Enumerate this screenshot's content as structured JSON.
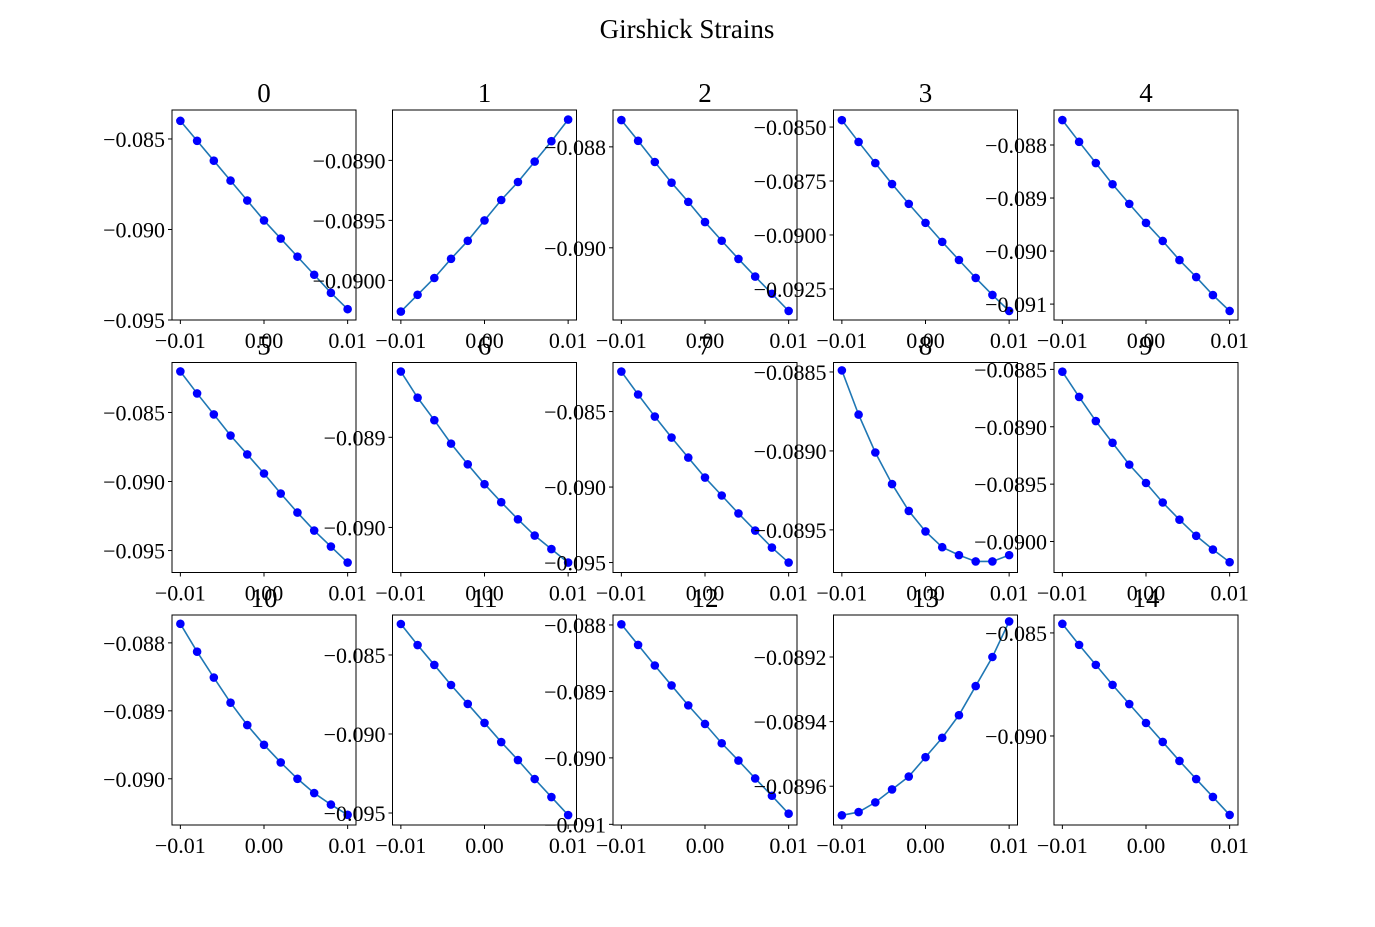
{
  "title": "Girshick Strains",
  "chart_data": [
    {
      "type": "line",
      "title": "0",
      "color": "#1f77b4",
      "marker_color": "#0000ff",
      "x": [
        -0.01,
        -0.008,
        -0.006,
        -0.004,
        -0.002,
        0,
        0.002,
        0.004,
        0.006,
        0.008,
        0.01
      ],
      "values": [
        -0.084,
        -0.0851,
        -0.0862,
        -0.0873,
        -0.0884,
        -0.0895,
        -0.0905,
        -0.0915,
        -0.0925,
        -0.0935,
        -0.0944
      ],
      "xlim": [
        -0.011,
        0.011
      ],
      "ylim": [
        -0.095,
        -0.0834
      ],
      "xticks": [
        {
          "value": -0.01,
          "label": "−0.01"
        },
        {
          "value": 0,
          "label": "0.00"
        },
        {
          "value": 0.01,
          "label": "0.01"
        }
      ],
      "yticks": [
        {
          "value": -0.085,
          "label": "−0.085"
        },
        {
          "value": -0.09,
          "label": "−0.090"
        },
        {
          "value": -0.095,
          "label": "−0.095"
        }
      ]
    },
    {
      "type": "line",
      "title": "1",
      "color": "#1f77b4",
      "marker_color": "#0000ff",
      "x": [
        -0.01,
        -0.008,
        -0.006,
        -0.004,
        -0.002,
        0,
        0.002,
        0.004,
        0.006,
        0.008,
        0.01
      ],
      "values": [
        -0.09026,
        -0.09012,
        -0.08998,
        -0.08982,
        -0.08967,
        -0.0895,
        -0.08933,
        -0.08918,
        -0.08901,
        -0.08884,
        -0.08866
      ],
      "xlim": [
        -0.011,
        0.011
      ],
      "ylim": [
        -0.09033,
        -0.08858
      ],
      "xticks": [
        {
          "value": -0.01,
          "label": "−0.01"
        },
        {
          "value": 0,
          "label": "0.00"
        },
        {
          "value": 0.01,
          "label": "0.01"
        }
      ],
      "yticks": [
        {
          "value": -0.089,
          "label": "−0.0890"
        },
        {
          "value": -0.0895,
          "label": "−0.0895"
        },
        {
          "value": -0.09,
          "label": "−0.0900"
        }
      ]
    },
    {
      "type": "line",
      "title": "2",
      "color": "#1f77b4",
      "marker_color": "#0000ff",
      "x": [
        -0.01,
        -0.008,
        -0.006,
        -0.004,
        -0.002,
        0,
        0.002,
        0.004,
        0.006,
        0.008,
        0.01
      ],
      "values": [
        -0.08747,
        -0.08788,
        -0.0883,
        -0.08871,
        -0.08909,
        -0.08949,
        -0.08986,
        -0.09022,
        -0.09057,
        -0.09091,
        -0.09125
      ],
      "xlim": [
        -0.011,
        0.011
      ],
      "ylim": [
        -0.09143,
        -0.08727
      ],
      "xticks": [
        {
          "value": -0.01,
          "label": "−0.01"
        },
        {
          "value": 0,
          "label": "0.00"
        },
        {
          "value": 0.01,
          "label": "0.01"
        }
      ],
      "yticks": [
        {
          "value": -0.088,
          "label": "−0.088"
        },
        {
          "value": -0.09,
          "label": "−0.090"
        }
      ]
    },
    {
      "type": "line",
      "title": "3",
      "color": "#1f77b4",
      "marker_color": "#0000ff",
      "x": [
        -0.01,
        -0.008,
        -0.006,
        -0.004,
        -0.002,
        0,
        0.002,
        0.004,
        0.006,
        0.008,
        0.01
      ],
      "values": [
        -0.08468,
        -0.08569,
        -0.08667,
        -0.08764,
        -0.08856,
        -0.08944,
        -0.09032,
        -0.09116,
        -0.09199,
        -0.09278,
        -0.09352
      ],
      "xlim": [
        -0.011,
        0.011
      ],
      "ylim": [
        -0.09394,
        -0.08421
      ],
      "xticks": [
        {
          "value": -0.01,
          "label": "−0.01"
        },
        {
          "value": 0,
          "label": "0.00"
        },
        {
          "value": 0.01,
          "label": "0.01"
        }
      ],
      "yticks": [
        {
          "value": -0.085,
          "label": "−0.0850"
        },
        {
          "value": -0.0875,
          "label": "−0.0875"
        },
        {
          "value": -0.09,
          "label": "−0.0900"
        },
        {
          "value": -0.0925,
          "label": "−0.0925"
        }
      ]
    },
    {
      "type": "line",
      "title": "4",
      "color": "#1f77b4",
      "marker_color": "#0000ff",
      "x": [
        -0.01,
        -0.008,
        -0.006,
        -0.004,
        -0.002,
        0,
        0.002,
        0.004,
        0.006,
        0.008,
        0.01
      ],
      "values": [
        -0.08753,
        -0.08794,
        -0.08834,
        -0.08874,
        -0.08911,
        -0.08947,
        -0.08981,
        -0.09017,
        -0.09049,
        -0.09083,
        -0.09113
      ],
      "xlim": [
        -0.011,
        0.011
      ],
      "ylim": [
        -0.0913,
        -0.08734
      ],
      "xticks": [
        {
          "value": -0.01,
          "label": "−0.01"
        },
        {
          "value": 0,
          "label": "0.00"
        },
        {
          "value": 0.01,
          "label": "0.01"
        }
      ],
      "yticks": [
        {
          "value": -0.088,
          "label": "−0.088"
        },
        {
          "value": -0.089,
          "label": "−0.089"
        },
        {
          "value": -0.09,
          "label": "−0.090"
        },
        {
          "value": -0.091,
          "label": "−0.091"
        }
      ]
    },
    {
      "type": "line",
      "title": "5",
      "color": "#1f77b4",
      "marker_color": "#0000ff",
      "x": [
        -0.01,
        -0.008,
        -0.006,
        -0.004,
        -0.002,
        0,
        0.002,
        0.004,
        0.006,
        0.008,
        0.01
      ],
      "values": [
        -0.08203,
        -0.08362,
        -0.08514,
        -0.08667,
        -0.08804,
        -0.08942,
        -0.09087,
        -0.09225,
        -0.09355,
        -0.09471,
        -0.09587
      ],
      "xlim": [
        -0.011,
        0.011
      ],
      "ylim": [
        -0.09659,
        -0.08138
      ],
      "xticks": [
        {
          "value": -0.01,
          "label": "−0.01"
        },
        {
          "value": 0,
          "label": "0.00"
        },
        {
          "value": 0.01,
          "label": "0.01"
        }
      ],
      "yticks": [
        {
          "value": -0.085,
          "label": "−0.085"
        },
        {
          "value": -0.09,
          "label": "−0.090"
        },
        {
          "value": -0.095,
          "label": "−0.095"
        }
      ]
    },
    {
      "type": "line",
      "title": "6",
      "color": "#1f77b4",
      "marker_color": "#0000ff",
      "x": [
        -0.01,
        -0.008,
        -0.006,
        -0.004,
        -0.002,
        0,
        0.002,
        0.004,
        0.006,
        0.008,
        0.01
      ],
      "values": [
        -0.08827,
        -0.08856,
        -0.08881,
        -0.08907,
        -0.0893,
        -0.08952,
        -0.08972,
        -0.08991,
        -0.09009,
        -0.09024,
        -0.09039
      ],
      "xlim": [
        -0.011,
        0.011
      ],
      "ylim": [
        -0.0905,
        -0.08817
      ],
      "xticks": [
        {
          "value": -0.01,
          "label": "−0.01"
        },
        {
          "value": 0,
          "label": "0.00"
        },
        {
          "value": 0.01,
          "label": "0.01"
        }
      ],
      "yticks": [
        {
          "value": -0.089,
          "label": "−0.089"
        },
        {
          "value": -0.09,
          "label": "−0.090"
        }
      ]
    },
    {
      "type": "line",
      "title": "7",
      "color": "#1f77b4",
      "marker_color": "#0000ff",
      "x": [
        -0.01,
        -0.008,
        -0.006,
        -0.004,
        -0.002,
        0,
        0.002,
        0.004,
        0.006,
        0.008,
        0.01
      ],
      "values": [
        -0.08235,
        -0.08387,
        -0.08533,
        -0.08672,
        -0.08805,
        -0.08937,
        -0.09056,
        -0.09175,
        -0.09288,
        -0.09401,
        -0.095
      ],
      "xlim": [
        -0.011,
        0.011
      ],
      "ylim": [
        -0.09566,
        -0.08175
      ],
      "xticks": [
        {
          "value": -0.01,
          "label": "−0.01"
        },
        {
          "value": 0,
          "label": "0.00"
        },
        {
          "value": 0.01,
          "label": "0.01"
        }
      ],
      "yticks": [
        {
          "value": -0.085,
          "label": "−0.085"
        },
        {
          "value": -0.09,
          "label": "−0.090"
        },
        {
          "value": -0.095,
          "label": "−0.095"
        }
      ]
    },
    {
      "type": "line",
      "title": "8",
      "color": "#1f77b4",
      "marker_color": "#0000ff",
      "x": [
        -0.01,
        -0.008,
        -0.006,
        -0.004,
        -0.002,
        0,
        0.002,
        0.004,
        0.006,
        0.008,
        0.01
      ],
      "values": [
        -0.08849,
        -0.08877,
        -0.08901,
        -0.08921,
        -0.08938,
        -0.08951,
        -0.08961,
        -0.08966,
        -0.0897,
        -0.0897,
        -0.08966
      ],
      "xlim": [
        -0.011,
        0.011
      ],
      "ylim": [
        -0.08977,
        -0.08844
      ],
      "xticks": [
        {
          "value": -0.01,
          "label": "−0.01"
        },
        {
          "value": 0,
          "label": "0.00"
        },
        {
          "value": 0.01,
          "label": "0.01"
        }
      ],
      "yticks": [
        {
          "value": -0.0885,
          "label": "−0.0885"
        },
        {
          "value": -0.089,
          "label": "−0.0890"
        },
        {
          "value": -0.0895,
          "label": "−0.0895"
        }
      ]
    },
    {
      "type": "line",
      "title": "9",
      "color": "#1f77b4",
      "marker_color": "#0000ff",
      "x": [
        -0.01,
        -0.008,
        -0.006,
        -0.004,
        -0.002,
        0,
        0.002,
        0.004,
        0.006,
        0.008,
        0.01
      ],
      "values": [
        -0.08852,
        -0.08874,
        -0.08895,
        -0.08914,
        -0.08933,
        -0.08949,
        -0.08966,
        -0.08981,
        -0.08995,
        -0.09007,
        -0.09018
      ],
      "xlim": [
        -0.011,
        0.011
      ],
      "ylim": [
        -0.09027,
        -0.08844
      ],
      "xticks": [
        {
          "value": -0.01,
          "label": "−0.01"
        },
        {
          "value": 0,
          "label": "0.00"
        },
        {
          "value": 0.01,
          "label": "0.01"
        }
      ],
      "yticks": [
        {
          "value": -0.0885,
          "label": "−0.0885"
        },
        {
          "value": -0.089,
          "label": "−0.0890"
        },
        {
          "value": -0.0895,
          "label": "−0.0895"
        },
        {
          "value": -0.09,
          "label": "−0.0900"
        }
      ]
    },
    {
      "type": "line",
      "title": "10",
      "color": "#1f77b4",
      "marker_color": "#0000ff",
      "x": [
        -0.01,
        -0.008,
        -0.006,
        -0.004,
        -0.002,
        0,
        0.002,
        0.004,
        0.006,
        0.008,
        0.01
      ],
      "values": [
        -0.08772,
        -0.08813,
        -0.08851,
        -0.08888,
        -0.08921,
        -0.0895,
        -0.08976,
        -0.09,
        -0.09021,
        -0.09038,
        -0.09053
      ],
      "xlim": [
        -0.011,
        0.011
      ],
      "ylim": [
        -0.09068,
        -0.08759
      ],
      "xticks": [
        {
          "value": -0.01,
          "label": "−0.01"
        },
        {
          "value": 0,
          "label": "0.00"
        },
        {
          "value": 0.01,
          "label": "0.01"
        }
      ],
      "yticks": [
        {
          "value": -0.088,
          "label": "−0.088"
        },
        {
          "value": -0.089,
          "label": "−0.089"
        },
        {
          "value": -0.09,
          "label": "−0.090"
        }
      ]
    },
    {
      "type": "line",
      "title": "11",
      "color": "#1f77b4",
      "marker_color": "#0000ff",
      "x": [
        -0.01,
        -0.008,
        -0.006,
        -0.004,
        -0.002,
        0,
        0.002,
        0.004,
        0.006,
        0.008,
        0.01
      ],
      "values": [
        -0.08304,
        -0.08437,
        -0.08563,
        -0.0869,
        -0.0881,
        -0.0893,
        -0.09051,
        -0.09165,
        -0.09285,
        -0.09399,
        -0.09513
      ],
      "xlim": [
        -0.011,
        0.011
      ],
      "ylim": [
        -0.09576,
        -0.08247
      ],
      "xticks": [
        {
          "value": -0.01,
          "label": "−0.01"
        },
        {
          "value": 0,
          "label": "0.00"
        },
        {
          "value": 0.01,
          "label": "0.01"
        }
      ],
      "yticks": [
        {
          "value": -0.085,
          "label": "−0.085"
        },
        {
          "value": -0.09,
          "label": "−0.090"
        },
        {
          "value": -0.095,
          "label": "−0.095"
        }
      ]
    },
    {
      "type": "line",
      "title": "12",
      "color": "#1f77b4",
      "marker_color": "#0000ff",
      "x": [
        -0.01,
        -0.008,
        -0.006,
        -0.004,
        -0.002,
        0,
        0.002,
        0.004,
        0.006,
        0.008,
        0.01
      ],
      "values": [
        -0.08799,
        -0.0883,
        -0.08861,
        -0.08891,
        -0.08921,
        -0.08949,
        -0.08978,
        -0.09004,
        -0.09031,
        -0.09057,
        -0.09084
      ],
      "xlim": [
        -0.011,
        0.011
      ],
      "ylim": [
        -0.09101,
        -0.08785
      ],
      "xticks": [
        {
          "value": -0.01,
          "label": "−0.01"
        },
        {
          "value": 0,
          "label": "0.00"
        },
        {
          "value": 0.01,
          "label": "0.01"
        }
      ],
      "yticks": [
        {
          "value": -0.088,
          "label": "−0.088"
        },
        {
          "value": -0.089,
          "label": "−0.089"
        },
        {
          "value": -0.09,
          "label": "−0.090"
        },
        {
          "value": -0.091,
          "label": "−0.091"
        }
      ]
    },
    {
      "type": "line",
      "title": "13",
      "color": "#1f77b4",
      "marker_color": "#0000ff",
      "x": [
        -0.01,
        -0.008,
        -0.006,
        -0.004,
        -0.002,
        0,
        0.002,
        0.004,
        0.006,
        0.008,
        0.01
      ],
      "values": [
        -0.08969,
        -0.08968,
        -0.08965,
        -0.08961,
        -0.08957,
        -0.08951,
        -0.08945,
        -0.08938,
        -0.08929,
        -0.0892,
        -0.08909
      ],
      "xlim": [
        -0.011,
        0.011
      ],
      "ylim": [
        -0.08972,
        -0.08907
      ],
      "xticks": [
        {
          "value": -0.01,
          "label": "−0.01"
        },
        {
          "value": 0,
          "label": "0.00"
        },
        {
          "value": 0.01,
          "label": "0.01"
        }
      ],
      "yticks": [
        {
          "value": -0.0892,
          "label": "−0.0892"
        },
        {
          "value": -0.0894,
          "label": "−0.0894"
        },
        {
          "value": -0.0896,
          "label": "−0.0896"
        }
      ]
    },
    {
      "type": "line",
      "title": "14",
      "color": "#1f77b4",
      "marker_color": "#0000ff",
      "x": [
        -0.01,
        -0.008,
        -0.006,
        -0.004,
        -0.002,
        0,
        0.002,
        0.004,
        0.006,
        0.008,
        0.01
      ],
      "values": [
        -0.08456,
        -0.08558,
        -0.08655,
        -0.08752,
        -0.08845,
        -0.08937,
        -0.09029,
        -0.09121,
        -0.09209,
        -0.09296,
        -0.09383
      ],
      "xlim": [
        -0.011,
        0.011
      ],
      "ylim": [
        -0.09432,
        -0.08413
      ],
      "xticks": [
        {
          "value": -0.01,
          "label": "−0.01"
        },
        {
          "value": 0,
          "label": "0.00"
        },
        {
          "value": 0.01,
          "label": "0.01"
        }
      ],
      "yticks": [
        {
          "value": -0.085,
          "label": "−0.085"
        },
        {
          "value": -0.09,
          "label": "−0.090"
        }
      ]
    }
  ]
}
